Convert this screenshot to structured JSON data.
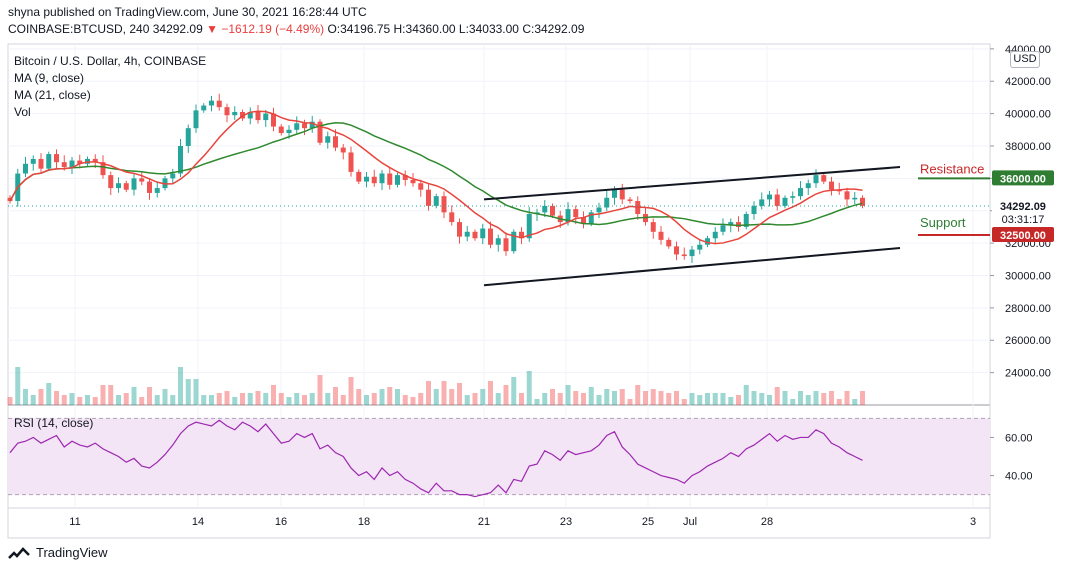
{
  "header": {
    "line1": "shyna published on TradingView.com, June 30, 2021 16:28:44 UTC",
    "symbol": "COINBASE:BTCUSD, 240",
    "last": "34292.09",
    "change": "−1612.19 (−4.49%)",
    "ohlc_o": "O:34196.75",
    "ohlc_h": "H:34360.00",
    "ohlc_l": "L:34033.00",
    "ohlc_c": "C:34292.09"
  },
  "legend": {
    "title": "Bitcoin / U.S. Dollar, 4h, COINBASE",
    "ma9": "MA (9, close)",
    "ma21": "MA (21, close)",
    "vol": "Vol",
    "rsi": "RSI (14, close)"
  },
  "currency": "USD",
  "annotations": {
    "resistance": "Resistance",
    "support": "Support"
  },
  "footer": {
    "brand": "TradingView"
  },
  "colors": {
    "up": "#26a69a",
    "down": "#ef5350",
    "ma9": "#e8453c",
    "ma21": "#2f8a2f",
    "rsi": "#9c27b0",
    "rsi_band": "#f3e5f5",
    "resistance": "#c62828",
    "support": "#2e7d32",
    "price_tag": "#ef5350"
  },
  "chart_data": {
    "type": "candlestick",
    "title": "Bitcoin / U.S. Dollar, 4h, COINBASE",
    "price_axis": {
      "ticks": [
        "44000.00",
        "42000.00",
        "40000.00",
        "38000.00",
        "36000.00",
        "34000.00",
        "32000.00",
        "30000.00",
        "28000.00",
        "26000.00",
        "24000.00"
      ],
      "range": [
        22000,
        44300
      ]
    },
    "time_axis": {
      "ticks": [
        "11",
        "14",
        "16",
        "18",
        "21",
        "23",
        "25",
        "28",
        "Jul",
        "3"
      ]
    },
    "price_labels": [
      {
        "label": "36000.00",
        "value": 36000,
        "kind": "resistance"
      },
      {
        "label": "34292.09",
        "value": 34292.09,
        "kind": "last",
        "countdown": "03:31:17"
      },
      {
        "label": "32500.00",
        "value": 32500,
        "kind": "support"
      }
    ],
    "channel": {
      "upper": {
        "start": {
          "time": "21",
          "price": 34700
        },
        "end": {
          "time": "30",
          "price": 36700
        }
      },
      "lower": {
        "start": {
          "time": "21",
          "price": 29400
        },
        "end": {
          "time": "30",
          "price": 31700
        }
      }
    },
    "series": [
      {
        "name": "MA (9, close)"
      },
      {
        "name": "MA (21, close)"
      },
      {
        "name": "Vol"
      },
      {
        "name": "RSI (14, close)"
      }
    ],
    "rsi_axis": {
      "ticks": [
        "60.00",
        "40.00"
      ],
      "band": [
        30,
        70
      ],
      "range": [
        23,
        77
      ]
    },
    "closes": [
      34600,
      36300,
      36900,
      37200,
      36600,
      37500,
      37000,
      36700,
      37100,
      36900,
      37200,
      37000,
      36200,
      35400,
      35700,
      35300,
      36000,
      35800,
      35100,
      35400,
      36000,
      36300,
      38000,
      39100,
      40200,
      40500,
      40800,
      40400,
      39900,
      40100,
      39700,
      40100,
      39600,
      40000,
      39200,
      38800,
      39000,
      39400,
      39100,
      39500,
      38200,
      38600,
      37900,
      37600,
      36400,
      35800,
      36100,
      35700,
      36300,
      35600,
      36200,
      35900,
      35700,
      35300,
      34300,
      34900,
      33900,
      33300,
      32400,
      32700,
      32300,
      32900,
      31900,
      32300,
      31500,
      32700,
      32300,
      33800,
      33900,
      34300,
      33700,
      33300,
      34100,
      33600,
      33200,
      33900,
      34200,
      34800,
      35300,
      34700,
      34600,
      33800,
      33300,
      32700,
      32200,
      31800,
      31300,
      31200,
      31600,
      31900,
      32300,
      32700,
      33100,
      33300,
      33000,
      33800,
      34300,
      34700,
      35000,
      34300,
      34800,
      34900,
      35400,
      35700,
      36200,
      35800,
      35300,
      35200,
      34700,
      34800,
      34300
    ],
    "rsi": [
      52,
      57,
      58,
      60,
      57,
      59,
      61,
      55,
      58,
      56,
      55,
      57,
      54,
      52,
      50,
      47,
      49,
      45,
      44,
      47,
      51,
      56,
      62,
      66,
      68,
      67,
      66,
      69,
      66,
      64,
      68,
      66,
      63,
      67,
      62,
      57,
      58,
      62,
      60,
      62,
      54,
      56,
      52,
      50,
      44,
      40,
      42,
      38,
      44,
      40,
      42,
      38,
      36,
      33,
      31,
      36,
      32,
      32,
      30,
      30,
      29,
      30,
      31,
      35,
      31,
      38,
      37,
      45,
      46,
      53,
      51,
      48,
      53,
      51,
      52,
      53,
      56,
      61,
      63,
      55,
      51,
      46,
      44,
      42,
      40,
      39,
      38,
      36,
      40,
      42,
      45,
      47,
      49,
      52,
      50,
      54,
      56,
      59,
      62,
      58,
      61,
      59,
      60,
      60,
      64,
      62,
      57,
      55,
      52,
      50,
      48
    ]
  }
}
